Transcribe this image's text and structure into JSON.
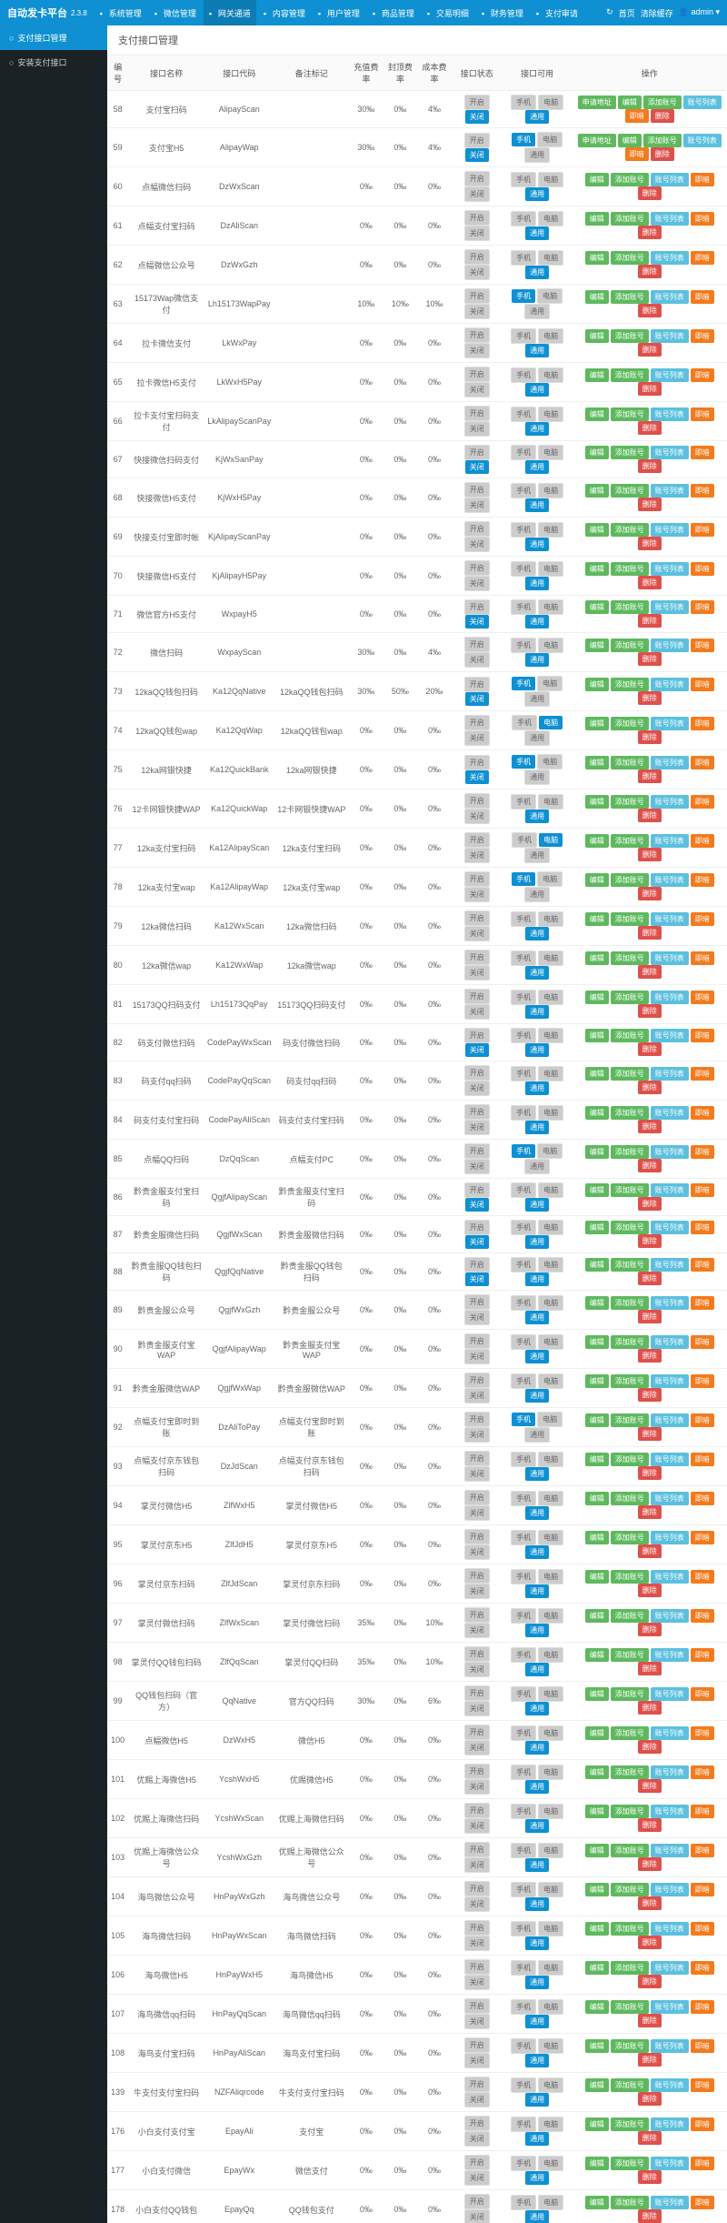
{
  "header": {
    "logo": "自动发卡平台",
    "version": "2.3.8",
    "nav": [
      "系统管理",
      "微信管理",
      "网关通道",
      "内容管理",
      "用户管理",
      "商品管理",
      "交易明细",
      "财务管理",
      "支付审请"
    ],
    "nav_active": 2,
    "right": [
      "首页",
      "清除缓存",
      "admin"
    ]
  },
  "sidebar": {
    "items": [
      "支付接口管理",
      "安装支付接口"
    ],
    "active": 0
  },
  "page_title": "支付接口管理",
  "columns": [
    "编号",
    "接口名称",
    "接口代码",
    "备注标记",
    "充值费率",
    "封顶费率",
    "成本费率",
    "接口状态",
    "接口可用",
    "操作"
  ],
  "status_labels": {
    "on": "开启",
    "off": "关闭"
  },
  "avail_labels": {
    "mobile": "手机",
    "pc": "电脑",
    "all": "通用"
  },
  "action_labels": {
    "apply": "申请地址",
    "edit": "编辑",
    "addacct": "添加账号",
    "acctlist": "账号列表",
    "upd": "即暗",
    "del": "删除"
  },
  "rows": [
    {
      "id": 58,
      "name": "支付宝扫码",
      "code": "AlipayScan",
      "note": "",
      "r1": "30‰",
      "r2": "0‰",
      "r3": "4‰",
      "st_on": true,
      "av": [
        "gray",
        "gray",
        "blue"
      ],
      "apply": true
    },
    {
      "id": 59,
      "name": "支付宝H5",
      "code": "AlipayWap",
      "note": "",
      "r1": "30‰",
      "r2": "0‰",
      "r3": "4‰",
      "st_on": true,
      "av": [
        "blue",
        "gray",
        "gray"
      ],
      "apply": true
    },
    {
      "id": 60,
      "name": "点幅微信扫码",
      "code": "DzWxScan",
      "note": "",
      "r1": "0‰",
      "r2": "0‰",
      "r3": "0‰",
      "st_on": false,
      "av": [
        "gray",
        "gray",
        "blue"
      ]
    },
    {
      "id": 61,
      "name": "点幅支付宝扫码",
      "code": "DzAliScan",
      "note": "",
      "r1": "0‰",
      "r2": "0‰",
      "r3": "0‰",
      "st_on": false,
      "av": [
        "gray",
        "gray",
        "blue"
      ]
    },
    {
      "id": 62,
      "name": "点幅微信公众号",
      "code": "DzWxGzh",
      "note": "",
      "r1": "0‰",
      "r2": "0‰",
      "r3": "0‰",
      "st_on": false,
      "av": [
        "gray",
        "gray",
        "blue"
      ]
    },
    {
      "id": 63,
      "name": "15173Wap微信支付",
      "code": "Lh15173WapPay",
      "note": "",
      "r1": "10‰",
      "r2": "10‰",
      "r3": "10‰",
      "st_on": false,
      "av": [
        "blue",
        "gray",
        "gray"
      ]
    },
    {
      "id": 64,
      "name": "拉卡微信支付",
      "code": "LkWxPay",
      "note": "",
      "r1": "0‰",
      "r2": "0‰",
      "r3": "0‰",
      "st_on": false,
      "av": [
        "gray",
        "gray",
        "blue"
      ]
    },
    {
      "id": 65,
      "name": "拉卡微信H5支付",
      "code": "LkWxH5Pay",
      "note": "",
      "r1": "0‰",
      "r2": "0‰",
      "r3": "0‰",
      "st_on": false,
      "av": [
        "gray",
        "gray",
        "blue"
      ]
    },
    {
      "id": 66,
      "name": "拉卡支付宝扫码支付",
      "code": "LkAlipayScanPay",
      "note": "",
      "r1": "0‰",
      "r2": "0‰",
      "r3": "0‰",
      "st_on": false,
      "av": [
        "gray",
        "gray",
        "blue"
      ]
    },
    {
      "id": 67,
      "name": "快接微信扫码支付",
      "code": "KjWxSanPay",
      "note": "",
      "r1": "0‰",
      "r2": "0‰",
      "r3": "0‰",
      "st_on": true,
      "av": [
        "gray",
        "gray",
        "blue"
      ]
    },
    {
      "id": 68,
      "name": "快接微信H5支付",
      "code": "KjWxH5Pay",
      "note": "",
      "r1": "0‰",
      "r2": "0‰",
      "r3": "0‰",
      "st_on": false,
      "av": [
        "gray",
        "gray",
        "blue"
      ]
    },
    {
      "id": 69,
      "name": "快接支付宝即时帐",
      "code": "KjAlipayScanPay",
      "note": "",
      "r1": "0‰",
      "r2": "0‰",
      "r3": "0‰",
      "st_on": false,
      "av": [
        "gray",
        "gray",
        "blue"
      ]
    },
    {
      "id": 70,
      "name": "快接微信H5支付",
      "code": "KjAlipayH5Pay",
      "note": "",
      "r1": "0‰",
      "r2": "0‰",
      "r3": "0‰",
      "st_on": false,
      "av": [
        "gray",
        "gray",
        "blue"
      ]
    },
    {
      "id": 71,
      "name": "微信官方H5支付",
      "code": "WxpayH5",
      "note": "",
      "r1": "0‰",
      "r2": "0‰",
      "r3": "0‰",
      "st_on": true,
      "av": [
        "gray",
        "gray",
        "blue"
      ]
    },
    {
      "id": 72,
      "name": "微信扫码",
      "code": "WxpayScan",
      "note": "",
      "r1": "30‰",
      "r2": "0‰",
      "r3": "4‰",
      "st_on": false,
      "av": [
        "gray",
        "gray",
        "blue"
      ]
    },
    {
      "id": 73,
      "name": "12kaQQ钱包扫码",
      "code": "Ka12QqNative",
      "note": "12kaQQ钱包扫码",
      "r1": "30‰",
      "r2": "50‰",
      "r3": "20‰",
      "st_on": true,
      "av": [
        "blue",
        "gray",
        "gray"
      ]
    },
    {
      "id": 74,
      "name": "12kaQQ钱包wap",
      "code": "Ka12QqWap",
      "note": "12kaQQ钱包wap",
      "r1": "0‰",
      "r2": "0‰",
      "r3": "0‰",
      "st_on": false,
      "av": [
        "gray",
        "blue",
        "gray"
      ]
    },
    {
      "id": 75,
      "name": "12ka网银快捷",
      "code": "Ka12QuickBank",
      "note": "12ka网银快捷",
      "r1": "0‰",
      "r2": "0‰",
      "r3": "0‰",
      "st_on": true,
      "av": [
        "blue",
        "gray",
        "gray"
      ]
    },
    {
      "id": 76,
      "name": "12卡网银快捷WAP",
      "code": "Ka12QuickWap",
      "note": "12卡网银快捷WAP",
      "r1": "0‰",
      "r2": "0‰",
      "r3": "0‰",
      "st_on": false,
      "av": [
        "gray",
        "gray",
        "blue"
      ]
    },
    {
      "id": 77,
      "name": "12ka支付宝扫码",
      "code": "Ka12AlipayScan",
      "note": "12ka支付宝扫码",
      "r1": "0‰",
      "r2": "0‰",
      "r3": "0‰",
      "st_on": false,
      "av": [
        "gray",
        "blue",
        "gray"
      ]
    },
    {
      "id": 78,
      "name": "12ka支付宝wap",
      "code": "Ka12AlipayWap",
      "note": "12ka支付宝wap",
      "r1": "0‰",
      "r2": "0‰",
      "r3": "0‰",
      "st_on": false,
      "av": [
        "blue",
        "gray",
        "gray"
      ]
    },
    {
      "id": 79,
      "name": "12ka微信扫码",
      "code": "Ka12WxScan",
      "note": "12ka微信扫码",
      "r1": "0‰",
      "r2": "0‰",
      "r3": "0‰",
      "st_on": false,
      "av": [
        "gray",
        "gray",
        "blue"
      ]
    },
    {
      "id": 80,
      "name": "12ka微信wap",
      "code": "Ka12WxWap",
      "note": "12ka微信wap",
      "r1": "0‰",
      "r2": "0‰",
      "r3": "0‰",
      "st_on": false,
      "av": [
        "gray",
        "gray",
        "blue"
      ]
    },
    {
      "id": 81,
      "name": "15173QQ扫码支付",
      "code": "Lh15173QqPay",
      "note": "15173QQ扫码支付",
      "r1": "0‰",
      "r2": "0‰",
      "r3": "0‰",
      "st_on": false,
      "av": [
        "gray",
        "gray",
        "blue"
      ]
    },
    {
      "id": 82,
      "name": "码支付微信扫码",
      "code": "CodePayWxScan",
      "note": "码支付微信扫码",
      "r1": "0‰",
      "r2": "0‰",
      "r3": "0‰",
      "st_on": true,
      "av": [
        "gray",
        "gray",
        "blue"
      ]
    },
    {
      "id": 83,
      "name": "码支付qq扫码",
      "code": "CodePayQqScan",
      "note": "码支付qq扫码",
      "r1": "0‰",
      "r2": "0‰",
      "r3": "0‰",
      "st_on": false,
      "av": [
        "gray",
        "gray",
        "blue"
      ]
    },
    {
      "id": 84,
      "name": "码支付支付宝扫码",
      "code": "CodePayAliScan",
      "note": "码支付支付宝扫码",
      "r1": "0‰",
      "r2": "0‰",
      "r3": "0‰",
      "st_on": false,
      "av": [
        "gray",
        "gray",
        "blue"
      ]
    },
    {
      "id": 85,
      "name": "点幅QQ扫码",
      "code": "DzQqScan",
      "note": "点幅支付PC",
      "r1": "0‰",
      "r2": "0‰",
      "r3": "0‰",
      "st_on": false,
      "av": [
        "blue",
        "gray",
        "gray"
      ]
    },
    {
      "id": 86,
      "name": "黔贵金服支付宝扫码",
      "code": "QgjfAlipayScan",
      "note": "黔贵金服支付宝扫码",
      "r1": "0‰",
      "r2": "0‰",
      "r3": "0‰",
      "st_on": true,
      "av": [
        "gray",
        "gray",
        "blue"
      ]
    },
    {
      "id": 87,
      "name": "黔贵金服微信扫码",
      "code": "QgjfWxScan",
      "note": "黔贵金服微信扫码",
      "r1": "0‰",
      "r2": "0‰",
      "r3": "0‰",
      "st_on": true,
      "av": [
        "gray",
        "gray",
        "blue"
      ]
    },
    {
      "id": 88,
      "name": "黔贵金服QQ钱包扫码",
      "code": "QgjfQqNative",
      "note": "黔贵金服QQ钱包扫码",
      "r1": "0‰",
      "r2": "0‰",
      "r3": "0‰",
      "st_on": true,
      "av": [
        "gray",
        "gray",
        "blue"
      ]
    },
    {
      "id": 89,
      "name": "黔贵金服公众号",
      "code": "QgjfWxGzh",
      "note": "黔贵金服公众号",
      "r1": "0‰",
      "r2": "0‰",
      "r3": "0‰",
      "st_on": false,
      "av": [
        "gray",
        "gray",
        "blue"
      ]
    },
    {
      "id": 90,
      "name": "黔贵金服支付宝WAP",
      "code": "QgjfAlipayWap",
      "note": "黔贵金服支付宝WAP",
      "r1": "0‰",
      "r2": "0‰",
      "r3": "0‰",
      "st_on": false,
      "av": [
        "gray",
        "gray",
        "blue"
      ]
    },
    {
      "id": 91,
      "name": "黔贵金服微信WAP",
      "code": "QgjfWxWap",
      "note": "黔贵金服微信WAP",
      "r1": "0‰",
      "r2": "0‰",
      "r3": "0‰",
      "st_on": false,
      "av": [
        "gray",
        "gray",
        "blue"
      ]
    },
    {
      "id": 92,
      "name": "点幅支付宝即时到账",
      "code": "DzAliToPay",
      "note": "点幅支付宝即时到账",
      "r1": "0‰",
      "r2": "0‰",
      "r3": "0‰",
      "st_on": false,
      "av": [
        "blue",
        "gray",
        "gray"
      ]
    },
    {
      "id": 93,
      "name": "点幅支付京东钱包扫码",
      "code": "DzJdScan",
      "note": "点幅支付京东钱包扫码",
      "r1": "0‰",
      "r2": "0‰",
      "r3": "0‰",
      "st_on": false,
      "av": [
        "gray",
        "gray",
        "blue"
      ]
    },
    {
      "id": 94,
      "name": "掌灵付微信H5",
      "code": "ZlfWxH5",
      "note": "掌灵付微信H5",
      "r1": "0‰",
      "r2": "0‰",
      "r3": "0‰",
      "st_on": false,
      "av": [
        "gray",
        "gray",
        "blue"
      ]
    },
    {
      "id": 95,
      "name": "掌灵付京东H5",
      "code": "ZlfJdH5",
      "note": "掌灵付京东H5",
      "r1": "0‰",
      "r2": "0‰",
      "r3": "0‰",
      "st_on": false,
      "av": [
        "gray",
        "gray",
        "blue"
      ]
    },
    {
      "id": 96,
      "name": "掌灵付京东扫码",
      "code": "ZlfJdScan",
      "note": "掌灵付京东扫码",
      "r1": "0‰",
      "r2": "0‰",
      "r3": "0‰",
      "st_on": false,
      "av": [
        "gray",
        "gray",
        "blue"
      ]
    },
    {
      "id": 97,
      "name": "掌灵付微信扫码",
      "code": "ZlfWxScan",
      "note": "掌灵付微信扫码",
      "r1": "35‰",
      "r2": "0‰",
      "r3": "10‰",
      "st_on": false,
      "av": [
        "gray",
        "gray",
        "blue"
      ]
    },
    {
      "id": 98,
      "name": "掌灵付QQ钱包扫码",
      "code": "ZlfQqScan",
      "note": "掌灵付QQ扫码",
      "r1": "35‰",
      "r2": "0‰",
      "r3": "10‰",
      "st_on": false,
      "av": [
        "gray",
        "gray",
        "blue"
      ]
    },
    {
      "id": 99,
      "name": "QQ钱包扫码（官方）",
      "code": "QqNative",
      "note": "官方QQ扫码",
      "r1": "30‰",
      "r2": "0‰",
      "r3": "6‰",
      "st_on": false,
      "av": [
        "gray",
        "gray",
        "blue"
      ]
    },
    {
      "id": 100,
      "name": "点幅微信H5",
      "code": "DzWxH5",
      "note": "微信H5",
      "r1": "0‰",
      "r2": "0‰",
      "r3": "0‰",
      "st_on": false,
      "av": [
        "gray",
        "gray",
        "blue"
      ]
    },
    {
      "id": 101,
      "name": "优赐上海微信H5",
      "code": "YcshWxH5",
      "note": "优赐微信H5",
      "r1": "0‰",
      "r2": "0‰",
      "r3": "0‰",
      "st_on": false,
      "av": [
        "gray",
        "gray",
        "blue"
      ]
    },
    {
      "id": 102,
      "name": "优赐上海微信扫码",
      "code": "YcshWxScan",
      "note": "优赐上海微信扫码",
      "r1": "0‰",
      "r2": "0‰",
      "r3": "0‰",
      "st_on": false,
      "av": [
        "gray",
        "gray",
        "blue"
      ]
    },
    {
      "id": 103,
      "name": "优赐上海微信公众号",
      "code": "YcshWxGzh",
      "note": "优赐上海微信公众号",
      "r1": "0‰",
      "r2": "0‰",
      "r3": "0‰",
      "st_on": false,
      "av": [
        "gray",
        "gray",
        "blue"
      ]
    },
    {
      "id": 104,
      "name": "海鸟微信公众号",
      "code": "HnPayWxGzh",
      "note": "海鸟微信公众号",
      "r1": "0‰",
      "r2": "0‰",
      "r3": "0‰",
      "st_on": false,
      "av": [
        "gray",
        "gray",
        "blue"
      ]
    },
    {
      "id": 105,
      "name": "海鸟微信扫码",
      "code": "HnPayWxScan",
      "note": "海鸟微信扫码",
      "r1": "0‰",
      "r2": "0‰",
      "r3": "0‰",
      "st_on": false,
      "av": [
        "gray",
        "gray",
        "blue"
      ]
    },
    {
      "id": 106,
      "name": "海鸟微信H5",
      "code": "HnPayWxH5",
      "note": "海鸟微信H5",
      "r1": "0‰",
      "r2": "0‰",
      "r3": "0‰",
      "st_on": false,
      "av": [
        "gray",
        "gray",
        "blue"
      ]
    },
    {
      "id": 107,
      "name": "海鸟微信qq扫码",
      "code": "HnPayQqScan",
      "note": "海鸟微信qq扫码",
      "r1": "0‰",
      "r2": "0‰",
      "r3": "0‰",
      "st_on": false,
      "av": [
        "gray",
        "gray",
        "blue"
      ]
    },
    {
      "id": 108,
      "name": "海鸟支付宝扫码",
      "code": "HnPayAliScan",
      "note": "海鸟支付宝扫码",
      "r1": "0‰",
      "r2": "0‰",
      "r3": "0‰",
      "st_on": false,
      "av": [
        "gray",
        "gray",
        "blue"
      ]
    },
    {
      "id": 139,
      "name": "牛支付支付宝扫码",
      "code": "NZFAliqrcode",
      "note": "牛支付支付宝扫码",
      "r1": "0‰",
      "r2": "0‰",
      "r3": "0‰",
      "st_on": false,
      "av": [
        "gray",
        "gray",
        "blue"
      ]
    },
    {
      "id": 176,
      "name": "小白支付支付宝",
      "code": "EpayAli",
      "note": "支付宝",
      "r1": "0‰",
      "r2": "0‰",
      "r3": "0‰",
      "st_on": false,
      "av": [
        "gray",
        "gray",
        "blue"
      ]
    },
    {
      "id": 177,
      "name": "小白支付微信",
      "code": "EpayWx",
      "note": "微信支付",
      "r1": "0‰",
      "r2": "0‰",
      "r3": "0‰",
      "st_on": false,
      "av": [
        "gray",
        "gray",
        "blue"
      ]
    },
    {
      "id": 178,
      "name": "小白支付QQ钱包",
      "code": "EpayQq",
      "note": "QQ钱包支付",
      "r1": "0‰",
      "r2": "0‰",
      "r3": "0‰",
      "st_on": false,
      "av": [
        "gray",
        "gray",
        "blue"
      ]
    }
  ]
}
